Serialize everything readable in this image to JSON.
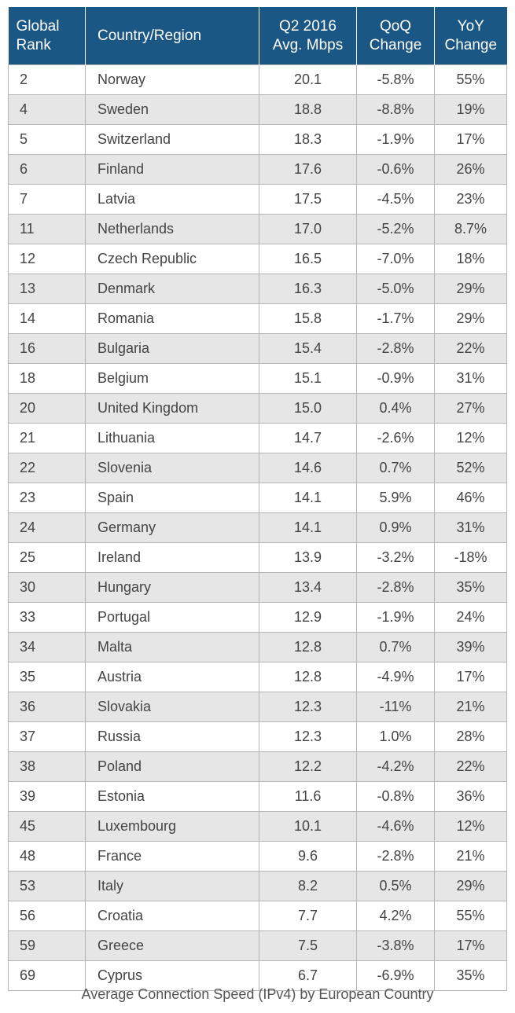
{
  "chart_data": {
    "type": "table",
    "title": "Average Connection Speed (IPv4) by European Country",
    "columns": [
      [
        "Global",
        "Rank"
      ],
      [
        "Country/Region"
      ],
      [
        "Q2 2016",
        "Avg. Mbps"
      ],
      [
        "QoQ",
        "Change"
      ],
      [
        "YoY",
        "Change"
      ]
    ],
    "rows": [
      [
        "2",
        "Norway",
        "20.1",
        "-5.8%",
        "55%"
      ],
      [
        "4",
        "Sweden",
        "18.8",
        "-8.8%",
        "19%"
      ],
      [
        "5",
        "Switzerland",
        "18.3",
        "-1.9%",
        "17%"
      ],
      [
        "6",
        "Finland",
        "17.6",
        "-0.6%",
        "26%"
      ],
      [
        "7",
        "Latvia",
        "17.5",
        "-4.5%",
        "23%"
      ],
      [
        "11",
        "Netherlands",
        "17.0",
        "-5.2%",
        "8.7%"
      ],
      [
        "12",
        "Czech Republic",
        "16.5",
        "-7.0%",
        "18%"
      ],
      [
        "13",
        "Denmark",
        "16.3",
        "-5.0%",
        "29%"
      ],
      [
        "14",
        "Romania",
        "15.8",
        "-1.7%",
        "29%"
      ],
      [
        "16",
        "Bulgaria",
        "15.4",
        "-2.8%",
        "22%"
      ],
      [
        "18",
        "Belgium",
        "15.1",
        "-0.9%",
        "31%"
      ],
      [
        "20",
        "United Kingdom",
        "15.0",
        "0.4%",
        "27%"
      ],
      [
        "21",
        "Lithuania",
        "14.7",
        "-2.6%",
        "12%"
      ],
      [
        "22",
        "Slovenia",
        "14.6",
        "0.7%",
        "52%"
      ],
      [
        "23",
        "Spain",
        "14.1",
        "5.9%",
        "46%"
      ],
      [
        "24",
        "Germany",
        "14.1",
        "0.9%",
        "31%"
      ],
      [
        "25",
        "Ireland",
        "13.9",
        "-3.2%",
        "-18%"
      ],
      [
        "30",
        "Hungary",
        "13.4",
        "-2.8%",
        "35%"
      ],
      [
        "33",
        "Portugal",
        "12.9",
        "-1.9%",
        "24%"
      ],
      [
        "34",
        "Malta",
        "12.8",
        "0.7%",
        "39%"
      ],
      [
        "35",
        "Austria",
        "12.8",
        "-4.9%",
        "17%"
      ],
      [
        "36",
        "Slovakia",
        "12.3",
        "-11%",
        "21%"
      ],
      [
        "37",
        "Russia",
        "12.3",
        "1.0%",
        "28%"
      ],
      [
        "38",
        "Poland",
        "12.2",
        "-4.2%",
        "22%"
      ],
      [
        "39",
        "Estonia",
        "11.6",
        "-0.8%",
        "36%"
      ],
      [
        "45",
        "Luxembourg",
        "10.1",
        "-4.6%",
        "12%"
      ],
      [
        "48",
        "France",
        "9.6",
        "-2.8%",
        "21%"
      ],
      [
        "53",
        "Italy",
        "8.2",
        "0.5%",
        "29%"
      ],
      [
        "56",
        "Croatia",
        "7.7",
        "4.2%",
        "55%"
      ],
      [
        "59",
        "Greece",
        "7.5",
        "-3.8%",
        "17%"
      ],
      [
        "69",
        "Cyprus",
        "6.7",
        "-6.9%",
        "35%"
      ]
    ]
  },
  "colors": {
    "header_bg": "#1a5785",
    "header_text": "#ffffff",
    "row_alt": "#e6e6e6",
    "row_base": "#ffffff",
    "grid": "#b5b5b5",
    "body_text": "#444444"
  }
}
